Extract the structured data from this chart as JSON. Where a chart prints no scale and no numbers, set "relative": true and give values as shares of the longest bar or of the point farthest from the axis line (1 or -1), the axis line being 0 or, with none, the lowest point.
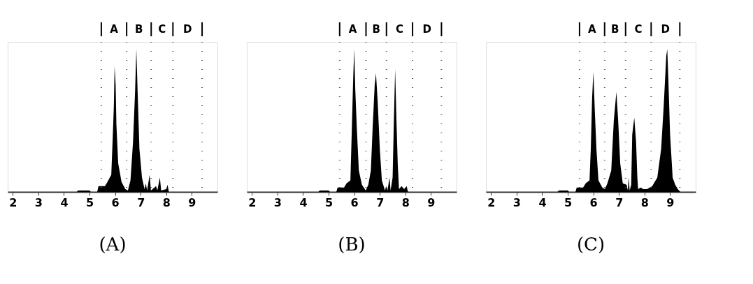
{
  "chart_data": [
    {
      "type": "area",
      "title": "(A)",
      "relative": true,
      "grid": false,
      "xlim": [
        1.8,
        10
      ],
      "xticks": [
        2,
        3,
        4,
        5,
        6,
        7,
        8,
        9
      ],
      "x": [
        2,
        4.5,
        4.55,
        5.0,
        5.05,
        5.3,
        5.35,
        5.6,
        5.7,
        5.85,
        5.9,
        5.95,
        5.98,
        6.02,
        6.05,
        6.12,
        6.25,
        6.4,
        6.5,
        6.6,
        6.7,
        6.78,
        6.83,
        6.88,
        6.95,
        7.05,
        7.15,
        7.2,
        7.25,
        7.35,
        7.4,
        7.6,
        7.65,
        7.75,
        7.8,
        8.0,
        8.05,
        8.1,
        10
      ],
      "series": [
        {
          "color": "#000000",
          "values": [
            0,
            0,
            0.01,
            0.01,
            0,
            0,
            0.04,
            0.04,
            0.07,
            0.12,
            0.35,
            0.6,
            0.88,
            0.75,
            0.47,
            0.2,
            0.07,
            0.02,
            0.01,
            0.08,
            0.35,
            0.7,
            1,
            0.7,
            0.3,
            0.1,
            0.02,
            0.06,
            0.01,
            0.12,
            0.01,
            0.04,
            0.01,
            0.1,
            0.01,
            0.02,
            0.05,
            0,
            0
          ]
        }
      ],
      "ref_lines": [
        {
          "axis": "x",
          "value": 5.46,
          "line_style": "dotted"
        },
        {
          "axis": "x",
          "value": 6.45,
          "line_style": "dotted"
        },
        {
          "axis": "x",
          "value": 7.41,
          "line_style": "dotted"
        },
        {
          "axis": "x",
          "value": 8.26,
          "line_style": "dotted"
        },
        {
          "axis": "x",
          "value": 9.4,
          "line_style": "dotted"
        }
      ],
      "annotations": [
        "A",
        "B",
        "C",
        "D"
      ]
    },
    {
      "type": "area",
      "title": "(B)",
      "relative": true,
      "grid": false,
      "xlim": [
        1.8,
        10
      ],
      "xticks": [
        2,
        3,
        4,
        5,
        6,
        7,
        8,
        9
      ],
      "x": [
        2,
        4.6,
        4.65,
        5.0,
        5.05,
        5.3,
        5.35,
        5.6,
        5.7,
        5.85,
        5.9,
        5.96,
        6.0,
        6.04,
        6.1,
        6.18,
        6.3,
        6.45,
        6.55,
        6.65,
        6.72,
        6.8,
        6.85,
        6.92,
        7.0,
        7.08,
        7.15,
        7.2,
        7.25,
        7.3,
        7.38,
        7.42,
        7.5,
        7.55,
        7.6,
        7.65,
        7.7,
        7.75,
        7.85,
        7.95,
        8.05,
        8.1,
        10
      ],
      "series": [
        {
          "color": "#000000",
          "values": [
            0,
            0,
            0.01,
            0.01,
            0,
            0,
            0.03,
            0.03,
            0.06,
            0.08,
            0.4,
            0.8,
            1,
            0.72,
            0.45,
            0.15,
            0.05,
            0.01,
            0.05,
            0.15,
            0.45,
            0.75,
            0.83,
            0.62,
            0.3,
            0.08,
            0.04,
            0.01,
            0.04,
            0.01,
            0.1,
            0.01,
            0.1,
            0.5,
            0.86,
            0.5,
            0.2,
            0.02,
            0.04,
            0.02,
            0.04,
            0,
            0
          ]
        }
      ],
      "ref_lines": [
        {
          "axis": "x",
          "value": 5.43,
          "line_style": "dotted"
        },
        {
          "axis": "x",
          "value": 6.46,
          "line_style": "dotted"
        },
        {
          "axis": "x",
          "value": 7.26,
          "line_style": "dotted"
        },
        {
          "axis": "x",
          "value": 8.28,
          "line_style": "dotted"
        },
        {
          "axis": "x",
          "value": 9.41,
          "line_style": "dotted"
        }
      ],
      "annotations": [
        "A",
        "B",
        "C",
        "D"
      ]
    },
    {
      "type": "area",
      "title": "(C)",
      "relative": true,
      "grid": false,
      "xlim": [
        1.8,
        10
      ],
      "xticks": [
        2,
        3,
        4,
        5,
        6,
        7,
        8,
        9
      ],
      "x": [
        2,
        4.6,
        4.65,
        5.0,
        5.05,
        5.3,
        5.35,
        5.6,
        5.7,
        5.85,
        5.9,
        5.95,
        6.0,
        6.05,
        6.12,
        6.2,
        6.35,
        6.45,
        6.55,
        6.7,
        6.8,
        6.9,
        6.97,
        7.05,
        7.15,
        7.3,
        7.35,
        7.38,
        7.42,
        7.48,
        7.52,
        7.6,
        7.67,
        7.72,
        7.75,
        7.85,
        7.95,
        8.1,
        8.3,
        8.5,
        8.65,
        8.75,
        8.85,
        8.89,
        8.93,
        9.0,
        9.1,
        9.2,
        9.3,
        9.4,
        10
      ],
      "series": [
        {
          "color": "#000000",
          "values": [
            0,
            0,
            0.01,
            0.01,
            0,
            0,
            0.03,
            0.03,
            0.06,
            0.08,
            0.3,
            0.65,
            0.84,
            0.6,
            0.3,
            0.08,
            0.03,
            0.02,
            0.06,
            0.15,
            0.5,
            0.7,
            0.5,
            0.2,
            0.06,
            0.05,
            0.01,
            0.1,
            0.01,
            0.05,
            0.4,
            0.52,
            0.35,
            0.1,
            0.02,
            0.03,
            0.02,
            0.02,
            0.04,
            0.1,
            0.3,
            0.6,
            0.95,
            1,
            0.8,
            0.4,
            0.1,
            0.05,
            0.02,
            0,
            0
          ]
        }
      ],
      "ref_lines": [
        {
          "axis": "x",
          "value": 5.46,
          "line_style": "dotted"
        },
        {
          "axis": "x",
          "value": 6.44,
          "line_style": "dotted"
        },
        {
          "axis": "x",
          "value": 7.26,
          "line_style": "dotted"
        },
        {
          "axis": "x",
          "value": 8.26,
          "line_style": "dotted"
        },
        {
          "axis": "x",
          "value": 9.38,
          "line_style": "dotted"
        }
      ],
      "annotations": [
        "A",
        "B",
        "C",
        "D"
      ]
    }
  ]
}
